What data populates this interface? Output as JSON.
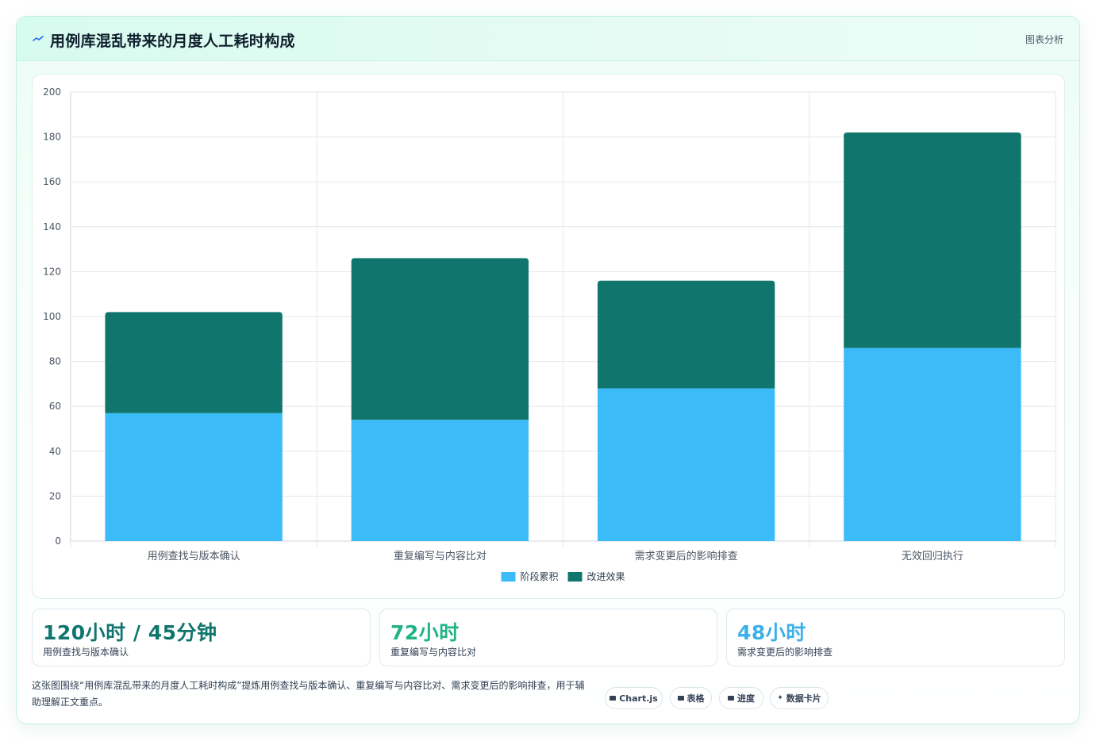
{
  "header": {
    "title": "用例库混乱带来的月度人工耗时构成",
    "tag": "图表分析",
    "accent": "#2563eb"
  },
  "chart_data": {
    "type": "bar",
    "stacked": true,
    "categories": [
      "用例查找与版本确认",
      "重复编写与内容比对",
      "需求变更后的影响排查",
      "无效回归执行"
    ],
    "series": [
      {
        "name": "阶段累积",
        "values": [
          57,
          54,
          68,
          86
        ],
        "color": "#3bbcf8"
      },
      {
        "name": "改进效果",
        "values": [
          45,
          72,
          48,
          96
        ],
        "color": "#10766d"
      }
    ],
    "ylim": [
      0,
      200
    ],
    "yticks": [
      0,
      20,
      40,
      60,
      80,
      100,
      120,
      140,
      160,
      180,
      200
    ],
    "grid": true,
    "legend": "bottom"
  },
  "stats": [
    {
      "value": "120小时 / 45分钟",
      "label": "用例查找与版本确认",
      "color": "#10766d"
    },
    {
      "value": "72小时",
      "label": "重复编写与内容比对",
      "color": "#1fb386"
    },
    {
      "value": "48小时",
      "label": "需求变更后的影响排查",
      "color": "#3bb0ea"
    }
  ],
  "description": "这张图围绕“用例库混乱带来的月度人工耗时构成”提炼用例查找与版本确认、重复编写与内容比对、需求变更后的影响排查，用于辅助理解正文重点。",
  "chips": [
    {
      "icon": "chart-icon",
      "label": "Chart.js"
    },
    {
      "icon": "table-icon",
      "label": "表格"
    },
    {
      "icon": "progress-icon",
      "label": "进度"
    },
    {
      "icon": "sparkle-icon",
      "label": "数据卡片"
    }
  ]
}
